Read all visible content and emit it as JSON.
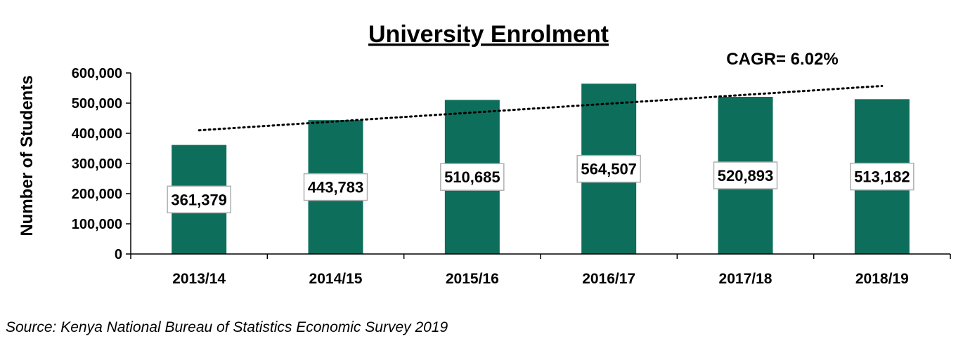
{
  "chart_data": {
    "type": "bar",
    "title": "University Enrolment",
    "ylabel": "Number of Students",
    "xlabel": "",
    "categories": [
      "2013/14",
      "2014/15",
      "2015/16",
      "2016/17",
      "2017/18",
      "2018/19"
    ],
    "values": [
      361379,
      443783,
      510685,
      564507,
      520893,
      513182
    ],
    "data_labels": [
      "361,379",
      "443,783",
      "510,685",
      "564,507",
      "520,893",
      "513,182"
    ],
    "ylim": [
      0,
      600000
    ],
    "yticks": [
      0,
      100000,
      200000,
      300000,
      400000,
      500000,
      600000
    ],
    "ytick_labels": [
      "0",
      "100,000",
      "200,000",
      "300,000",
      "400,000",
      "500,000",
      "600,000"
    ],
    "grid": false,
    "bar_color": "#0e6e5c",
    "trendline": {
      "style": "dotted",
      "start": 410000,
      "end": 557000
    },
    "annotation": "CAGR= 6.02%"
  },
  "source": "Source:  Kenya National Bureau of Statistics Economic Survey 2019"
}
